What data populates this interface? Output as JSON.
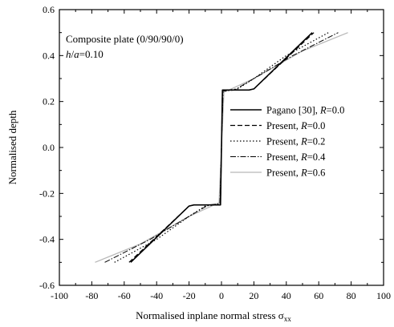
{
  "chart_data": {
    "type": "line",
    "title": "",
    "xlabel": "Normalised inplane normal stress σ",
    "xlabel_subscript": "xx",
    "ylabel": "Normalised depth",
    "xlim": [
      -100,
      100
    ],
    "ylim": [
      -0.6,
      0.6
    ],
    "xticks": [
      "-100",
      "-80",
      "-60",
      "-40",
      "-20",
      "0",
      "20",
      "40",
      "60",
      "80",
      "100"
    ],
    "yticks": [
      "-0.6",
      "-0.4",
      "-0.2",
      "0.0",
      "0.2",
      "0.4",
      "0.6"
    ],
    "grid": false,
    "legend_position": "right",
    "annotations": {
      "line1": "Composite plate (0/90/90/0)",
      "line2_italic": "h",
      "line2_sep": "/",
      "line2_italic2": "a",
      "line2_rest": "=0.10"
    },
    "series": [
      {
        "label_prefix": "Pagano [30], ",
        "label_italic": "R",
        "label_suffix": "=0.0",
        "color": "#000000",
        "dash": "",
        "width": 1.6,
        "points": [
          [
            -56,
            -0.5
          ],
          [
            -20,
            -0.255
          ],
          [
            -17,
            -0.25
          ],
          [
            -0.6,
            -0.25
          ],
          [
            0,
            0
          ],
          [
            0.6,
            0.25
          ],
          [
            17,
            0.25
          ],
          [
            20,
            0.255
          ],
          [
            56,
            0.5
          ]
        ]
      },
      {
        "label_prefix": "Present, ",
        "label_italic": "R",
        "label_suffix": "=0.0",
        "color": "#000000",
        "dash": "6,3",
        "width": 1.2,
        "points": [
          [
            -57,
            -0.5
          ],
          [
            -20,
            -0.255
          ],
          [
            -17,
            -0.25
          ],
          [
            -0.6,
            -0.25
          ],
          [
            0,
            0
          ],
          [
            0.6,
            0.25
          ],
          [
            17,
            0.25
          ],
          [
            20,
            0.255
          ],
          [
            57,
            0.5
          ]
        ]
      },
      {
        "label_prefix": "Present, ",
        "label_italic": "R",
        "label_suffix": "=0.2",
        "color": "#000000",
        "dash": "1.5,2.5",
        "width": 1.2,
        "points": [
          [
            -66,
            -0.5
          ],
          [
            -40,
            -0.4
          ],
          [
            -20,
            -0.3
          ],
          [
            -10,
            -0.255
          ],
          [
            -0.8,
            -0.247
          ],
          [
            0,
            0
          ],
          [
            0.8,
            0.247
          ],
          [
            10,
            0.255
          ],
          [
            20,
            0.3
          ],
          [
            40,
            0.4
          ],
          [
            66,
            0.5
          ]
        ]
      },
      {
        "label_prefix": "Present, ",
        "label_italic": "R",
        "label_suffix": "=0.4",
        "color": "#000000",
        "dash": "7,2,1.5,2",
        "width": 1.0,
        "points": [
          [
            -72,
            -0.5
          ],
          [
            -44,
            -0.4
          ],
          [
            -20,
            -0.3
          ],
          [
            -8,
            -0.25
          ],
          [
            -1,
            -0.245
          ],
          [
            0,
            0
          ],
          [
            1,
            0.245
          ],
          [
            8,
            0.25
          ],
          [
            20,
            0.3
          ],
          [
            44,
            0.4
          ],
          [
            72,
            0.5
          ]
        ]
      },
      {
        "label_prefix": "Present, ",
        "label_italic": "R",
        "label_suffix": "=0.6",
        "color": "#b8b8b8",
        "dash": "",
        "width": 1.3,
        "points": [
          [
            -78,
            -0.5
          ],
          [
            -50,
            -0.42
          ],
          [
            -20,
            -0.3
          ],
          [
            -1.5,
            -0.24
          ],
          [
            0,
            0
          ],
          [
            1.5,
            0.24
          ],
          [
            20,
            0.3
          ],
          [
            50,
            0.42
          ],
          [
            78,
            0.5
          ]
        ]
      }
    ]
  }
}
